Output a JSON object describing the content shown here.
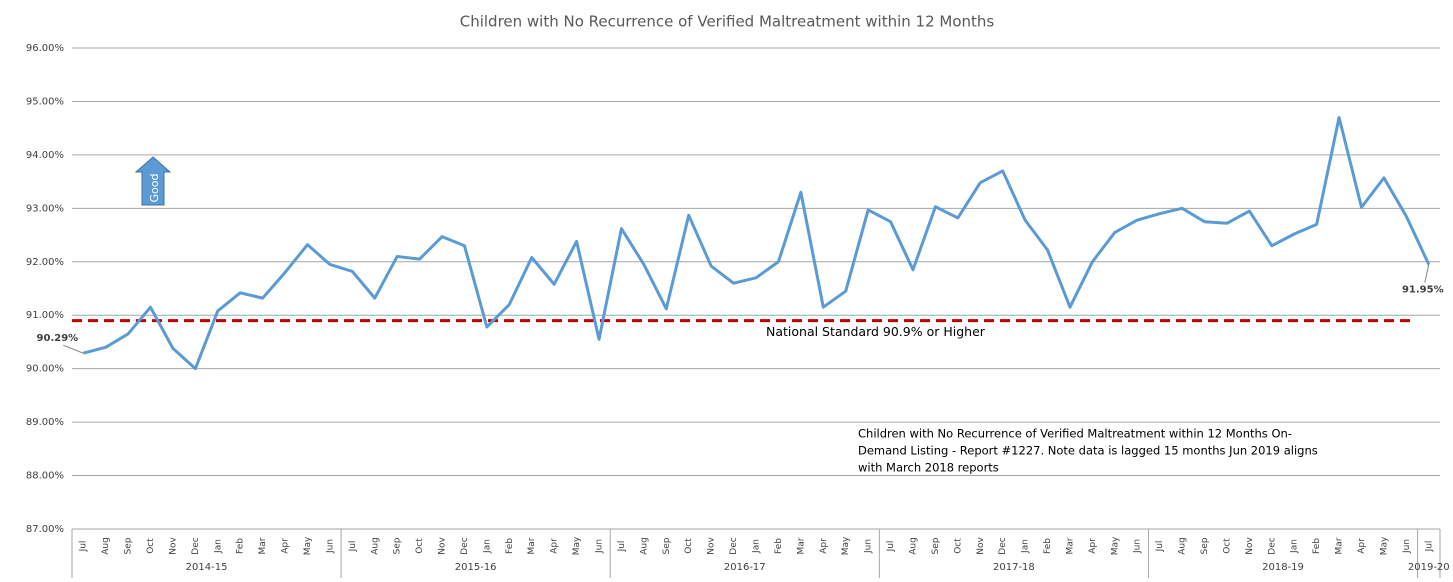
{
  "chart_data": {
    "type": "line",
    "title": "Children with No Recurrence of Verified Maltreatment within 12 Months",
    "categories": [
      "Jul",
      "Aug",
      "Sep",
      "Oct",
      "Nov",
      "Dec",
      "Jan",
      "Feb",
      "Mar",
      "Apr",
      "May",
      "Jun",
      "Jul",
      "Aug",
      "Sep",
      "Oct",
      "Nov",
      "Dec",
      "Jan",
      "Feb",
      "Mar",
      "Apr",
      "May",
      "Jun",
      "Jul",
      "Aug",
      "Sep",
      "Oct",
      "Nov",
      "Dec",
      "Jan",
      "Feb",
      "Mar",
      "Apr",
      "May",
      "Jun",
      "Jul",
      "Aug",
      "Sep",
      "Oct",
      "Nov",
      "Dec",
      "Jan",
      "Feb",
      "Mar",
      "Apr",
      "May",
      "Jun",
      "Jul",
      "Aug",
      "Sep",
      "Oct",
      "Nov",
      "Dec",
      "Jan",
      "Feb",
      "Mar",
      "Apr",
      "May",
      "Jun",
      "Jul"
    ],
    "x_groups": [
      {
        "label": "2014-15",
        "categories": 12
      },
      {
        "label": "2015-16",
        "categories": 12
      },
      {
        "label": "2016-17",
        "categories": 12
      },
      {
        "label": "2017-18",
        "categories": 12
      },
      {
        "label": "2018-19",
        "categories": 12
      },
      {
        "label": "2019-20",
        "categories": 1
      }
    ],
    "series": [
      {
        "name": "No Recurrence",
        "color": "#5b9bd5",
        "values": [
          90.29,
          90.4,
          90.65,
          91.15,
          90.38,
          90.0,
          91.08,
          91.42,
          91.32,
          91.8,
          92.32,
          91.95,
          91.82,
          91.32,
          92.1,
          92.05,
          92.47,
          92.3,
          90.78,
          91.2,
          92.08,
          91.58,
          92.38,
          90.55,
          92.62,
          91.95,
          91.12,
          92.87,
          91.92,
          91.6,
          91.7,
          92.0,
          93.3,
          91.15,
          91.45,
          92.97,
          92.75,
          91.85,
          93.03,
          92.82,
          93.48,
          93.7,
          92.78,
          92.22,
          91.15,
          92.0,
          92.55,
          92.78,
          92.9,
          93.0,
          92.75,
          92.72,
          92.95,
          92.3,
          92.52,
          92.7,
          94.7,
          93.02,
          93.57,
          92.85,
          91.95
        ],
        "value_labels": [
          "90.29%",
          null,
          null,
          null,
          null,
          null,
          null,
          null,
          null,
          null,
          null,
          null,
          null,
          null,
          null,
          null,
          null,
          null,
          null,
          null,
          null,
          null,
          null,
          null,
          null,
          null,
          null,
          null,
          null,
          null,
          null,
          null,
          null,
          null,
          null,
          null,
          null,
          null,
          null,
          null,
          null,
          null,
          null,
          null,
          null,
          null,
          null,
          null,
          null,
          null,
          null,
          null,
          null,
          null,
          null,
          null,
          null,
          null,
          null,
          null,
          "91.95%"
        ]
      }
    ],
    "ylim": [
      87,
      96
    ],
    "yticks": [
      {
        "value": 87,
        "label": "87.00%"
      },
      {
        "value": 88,
        "label": "88.00%"
      },
      {
        "value": 89,
        "label": "89.00%"
      },
      {
        "value": 90,
        "label": "90.00%"
      },
      {
        "value": 91,
        "label": "91.00%"
      },
      {
        "value": 92,
        "label": "92.00%"
      },
      {
        "value": 93,
        "label": "93.00%"
      },
      {
        "value": 94,
        "label": "94.00%"
      },
      {
        "value": 95,
        "label": "95.00%"
      },
      {
        "value": 96,
        "label": "96.00%"
      }
    ],
    "grid": true,
    "reference_line": {
      "value": 90.9,
      "label": "National Standard 90.9% or Higher",
      "color": "#c00000"
    },
    "direction_label": "Good",
    "annotation": [
      "Children with No Recurrence of Verified Maltreatment within 12 Months On-",
      "Demand Listing - Report #1227.  Note data is lagged 15 months Jun 2019  aligns",
      "with March 2018 reports"
    ]
  }
}
